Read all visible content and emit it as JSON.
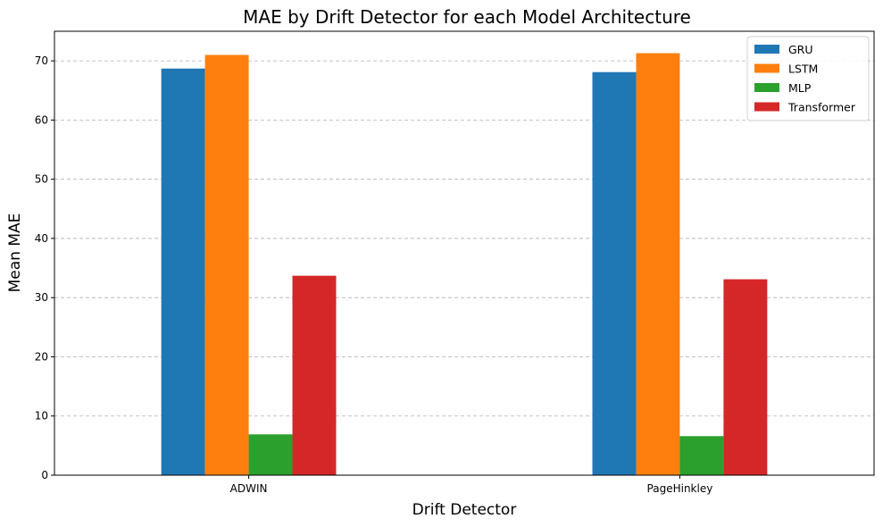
{
  "chart_data": {
    "type": "bar",
    "title": "MAE by Drift Detector for each Model Architecture",
    "xlabel": "Drift Detector",
    "ylabel": "Mean MAE",
    "categories": [
      "ADWIN",
      "PageHinkley"
    ],
    "series": [
      {
        "name": "GRU",
        "color": "#1f77b4",
        "values": [
          68.7,
          68.1
        ]
      },
      {
        "name": "LSTM",
        "color": "#ff7f0e",
        "values": [
          71.0,
          71.3
        ]
      },
      {
        "name": "MLP",
        "color": "#2ca02c",
        "values": [
          6.9,
          6.6
        ]
      },
      {
        "name": "Transformer",
        "color": "#d62728",
        "values": [
          33.7,
          33.1
        ]
      }
    ],
    "ylim": [
      0,
      75
    ],
    "yticks": [
      0,
      10,
      20,
      30,
      40,
      50,
      60,
      70
    ],
    "grid": "y-dashed",
    "legend_position": "top-right"
  }
}
